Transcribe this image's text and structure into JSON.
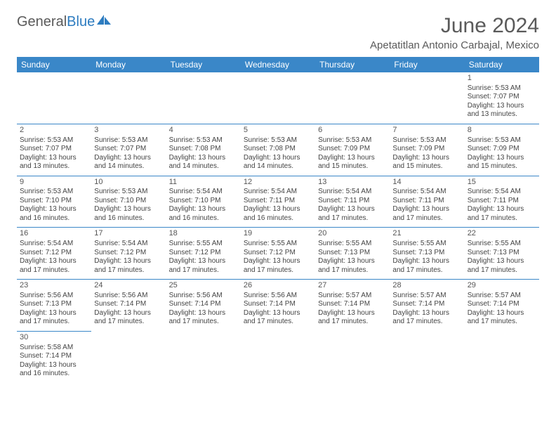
{
  "logo": {
    "text1": "General",
    "text2": "Blue"
  },
  "title": "June 2024",
  "location": "Apetatitlan Antonio Carbajal, Mexico",
  "colors": {
    "header_bg": "#3a87c8",
    "header_fg": "#ffffff",
    "rule": "#3a87c8",
    "text": "#444444",
    "title_fg": "#5a5a5a"
  },
  "weekdays": [
    "Sunday",
    "Monday",
    "Tuesday",
    "Wednesday",
    "Thursday",
    "Friday",
    "Saturday"
  ],
  "weeks": [
    [
      null,
      null,
      null,
      null,
      null,
      null,
      {
        "d": "1",
        "sr": "5:53 AM",
        "ss": "7:07 PM",
        "dl": "13 hours and 13 minutes."
      }
    ],
    [
      {
        "d": "2",
        "sr": "5:53 AM",
        "ss": "7:07 PM",
        "dl": "13 hours and 13 minutes."
      },
      {
        "d": "3",
        "sr": "5:53 AM",
        "ss": "7:07 PM",
        "dl": "13 hours and 14 minutes."
      },
      {
        "d": "4",
        "sr": "5:53 AM",
        "ss": "7:08 PM",
        "dl": "13 hours and 14 minutes."
      },
      {
        "d": "5",
        "sr": "5:53 AM",
        "ss": "7:08 PM",
        "dl": "13 hours and 14 minutes."
      },
      {
        "d": "6",
        "sr": "5:53 AM",
        "ss": "7:09 PM",
        "dl": "13 hours and 15 minutes."
      },
      {
        "d": "7",
        "sr": "5:53 AM",
        "ss": "7:09 PM",
        "dl": "13 hours and 15 minutes."
      },
      {
        "d": "8",
        "sr": "5:53 AM",
        "ss": "7:09 PM",
        "dl": "13 hours and 15 minutes."
      }
    ],
    [
      {
        "d": "9",
        "sr": "5:53 AM",
        "ss": "7:10 PM",
        "dl": "13 hours and 16 minutes."
      },
      {
        "d": "10",
        "sr": "5:53 AM",
        "ss": "7:10 PM",
        "dl": "13 hours and 16 minutes."
      },
      {
        "d": "11",
        "sr": "5:54 AM",
        "ss": "7:10 PM",
        "dl": "13 hours and 16 minutes."
      },
      {
        "d": "12",
        "sr": "5:54 AM",
        "ss": "7:11 PM",
        "dl": "13 hours and 16 minutes."
      },
      {
        "d": "13",
        "sr": "5:54 AM",
        "ss": "7:11 PM",
        "dl": "13 hours and 17 minutes."
      },
      {
        "d": "14",
        "sr": "5:54 AM",
        "ss": "7:11 PM",
        "dl": "13 hours and 17 minutes."
      },
      {
        "d": "15",
        "sr": "5:54 AM",
        "ss": "7:11 PM",
        "dl": "13 hours and 17 minutes."
      }
    ],
    [
      {
        "d": "16",
        "sr": "5:54 AM",
        "ss": "7:12 PM",
        "dl": "13 hours and 17 minutes."
      },
      {
        "d": "17",
        "sr": "5:54 AM",
        "ss": "7:12 PM",
        "dl": "13 hours and 17 minutes."
      },
      {
        "d": "18",
        "sr": "5:55 AM",
        "ss": "7:12 PM",
        "dl": "13 hours and 17 minutes."
      },
      {
        "d": "19",
        "sr": "5:55 AM",
        "ss": "7:12 PM",
        "dl": "13 hours and 17 minutes."
      },
      {
        "d": "20",
        "sr": "5:55 AM",
        "ss": "7:13 PM",
        "dl": "13 hours and 17 minutes."
      },
      {
        "d": "21",
        "sr": "5:55 AM",
        "ss": "7:13 PM",
        "dl": "13 hours and 17 minutes."
      },
      {
        "d": "22",
        "sr": "5:55 AM",
        "ss": "7:13 PM",
        "dl": "13 hours and 17 minutes."
      }
    ],
    [
      {
        "d": "23",
        "sr": "5:56 AM",
        "ss": "7:13 PM",
        "dl": "13 hours and 17 minutes."
      },
      {
        "d": "24",
        "sr": "5:56 AM",
        "ss": "7:14 PM",
        "dl": "13 hours and 17 minutes."
      },
      {
        "d": "25",
        "sr": "5:56 AM",
        "ss": "7:14 PM",
        "dl": "13 hours and 17 minutes."
      },
      {
        "d": "26",
        "sr": "5:56 AM",
        "ss": "7:14 PM",
        "dl": "13 hours and 17 minutes."
      },
      {
        "d": "27",
        "sr": "5:57 AM",
        "ss": "7:14 PM",
        "dl": "13 hours and 17 minutes."
      },
      {
        "d": "28",
        "sr": "5:57 AM",
        "ss": "7:14 PM",
        "dl": "13 hours and 17 minutes."
      },
      {
        "d": "29",
        "sr": "5:57 AM",
        "ss": "7:14 PM",
        "dl": "13 hours and 17 minutes."
      }
    ],
    [
      {
        "d": "30",
        "sr": "5:58 AM",
        "ss": "7:14 PM",
        "dl": "13 hours and 16 minutes."
      },
      null,
      null,
      null,
      null,
      null,
      null
    ]
  ],
  "labels": {
    "sunrise": "Sunrise:",
    "sunset": "Sunset:",
    "daylight": "Daylight:"
  }
}
